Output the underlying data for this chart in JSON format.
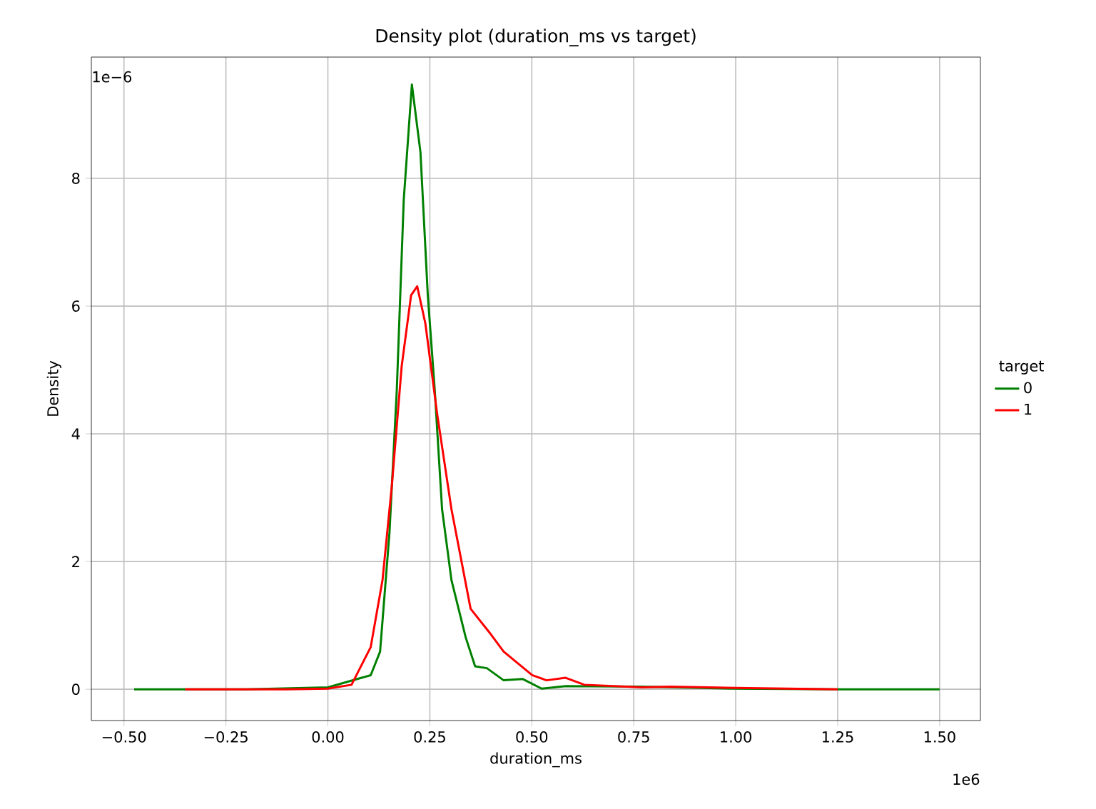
{
  "chart_data": {
    "type": "line",
    "title": "Density plot (duration_ms vs target)",
    "xlabel": "duration_ms",
    "ylabel": "Density",
    "legend_title": "target",
    "annotations": [
      "1e−6",
      "1e6"
    ],
    "xlim": [
      -0.58,
      1.6
    ],
    "ylim": [
      -0.49,
      9.9
    ],
    "xticks": [
      {
        "value": -0.5,
        "label": "−0.50"
      },
      {
        "value": -0.25,
        "label": "−0.25"
      },
      {
        "value": 0,
        "label": "0.00"
      },
      {
        "value": 0.25,
        "label": "0.25"
      },
      {
        "value": 0.5,
        "label": "0.50"
      },
      {
        "value": 0.75,
        "label": "0.75"
      },
      {
        "value": 1.0,
        "label": "1.00"
      },
      {
        "value": 1.25,
        "label": "1.25"
      },
      {
        "value": 1.5,
        "label": "1.50"
      }
    ],
    "yticks": [
      0,
      2,
      4,
      6,
      8
    ],
    "grid": true,
    "legend": "right",
    "marker": "none",
    "line_style": "solid",
    "series": [
      {
        "name": "0",
        "color": "#008000",
        "x": [
          -0.475,
          -0.2,
          0,
          0.105,
          0.128,
          0.151,
          0.169,
          0.186,
          0.206,
          0.227,
          0.245,
          0.262,
          0.28,
          0.303,
          0.338,
          0.361,
          0.39,
          0.431,
          0.478,
          0.524,
          0.583,
          0.77,
          1.0,
          1.25,
          1.5
        ],
        "values": [
          0,
          0,
          0.03,
          0.22,
          0.59,
          2.45,
          4.69,
          7.66,
          9.47,
          8.41,
          6.17,
          4.69,
          2.82,
          1.71,
          0.81,
          0.36,
          0.33,
          0.14,
          0.16,
          0.01,
          0.05,
          0.04,
          0.01,
          0,
          0
        ]
      },
      {
        "name": "1",
        "color": "#ff0000",
        "x": [
          -0.35,
          -0.1,
          0,
          0.058,
          0.105,
          0.134,
          0.157,
          0.181,
          0.204,
          0.219,
          0.239,
          0.268,
          0.303,
          0.35,
          0.396,
          0.431,
          0.501,
          0.536,
          0.583,
          0.629,
          0.77,
          0.84,
          1.0,
          1.25
        ],
        "values": [
          0,
          0,
          0.01,
          0.07,
          0.66,
          1.71,
          3.2,
          5.06,
          6.17,
          6.31,
          5.73,
          4.31,
          2.82,
          1.26,
          0.89,
          0.59,
          0.22,
          0.14,
          0.18,
          0.07,
          0.03,
          0.04,
          0.02,
          0
        ]
      }
    ]
  }
}
